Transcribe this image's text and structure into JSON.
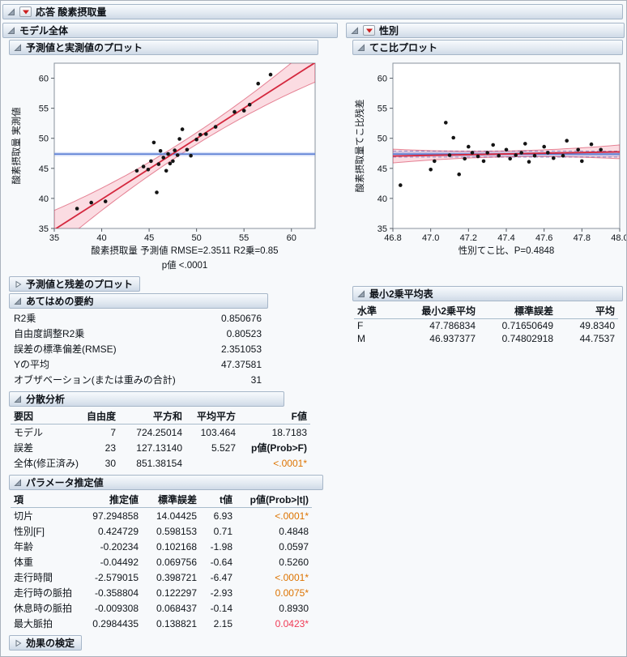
{
  "report": {
    "title": "応答 酸素摂取量"
  },
  "left": {
    "title": "モデル全体",
    "residual_plot": {
      "title": "予測値と残差のプロット"
    },
    "summary_of_fit": {
      "title": "あてはめの要約",
      "rows": [
        {
          "cells": [
            "R2乗",
            "0.850676"
          ],
          "classes": [
            "",
            "num"
          ]
        },
        {
          "cells": [
            "自由度調整R2乗",
            "0.80523"
          ],
          "classes": [
            "",
            "num"
          ]
        },
        {
          "cells": [
            "誤差の標準偏差(RMSE)",
            "2.351053"
          ],
          "classes": [
            "",
            "num"
          ]
        },
        {
          "cells": [
            "Yの平均",
            "47.37581"
          ],
          "classes": [
            "",
            "num"
          ]
        },
        {
          "cells": [
            "オブザベーション(または重みの合計)",
            "31"
          ],
          "classes": [
            "",
            "num"
          ]
        }
      ]
    },
    "anova": {
      "title": "分散分析",
      "headers": [
        "要因",
        "自由度",
        "平方和",
        "平均平方",
        "F値"
      ],
      "rows": [
        {
          "cells": [
            "モデル",
            "7",
            "724.25014",
            "103.464",
            "18.7183"
          ],
          "classes": [
            "",
            "num",
            "num",
            "num",
            "num"
          ]
        },
        {
          "cells": [
            "誤差",
            "23",
            "127.13140",
            "5.527",
            "p値(Prob>F)"
          ],
          "classes": [
            "",
            "num",
            "num",
            "num",
            "num bold"
          ]
        },
        {
          "cells": [
            "全体(修正済み)",
            "30",
            "851.38154",
            "",
            "<.0001*"
          ],
          "classes": [
            "",
            "num",
            "num",
            "num",
            "num orange"
          ]
        }
      ]
    },
    "parameters": {
      "title": "パラメータ推定値",
      "headers": [
        "項",
        "推定値",
        "標準誤差",
        "t値",
        "p値(Prob>|t|)"
      ],
      "rows": [
        {
          "cells": [
            "切片",
            "97.294858",
            "14.04425",
            "6.93",
            "<.0001*"
          ],
          "classes": [
            "",
            "num",
            "num",
            "num",
            "num orange"
          ]
        },
        {
          "cells": [
            "性別[F]",
            "0.424729",
            "0.598153",
            "0.71",
            "0.4848"
          ],
          "classes": [
            "",
            "num",
            "num",
            "num",
            "num"
          ]
        },
        {
          "cells": [
            "年齢",
            "-0.20234",
            "0.102168",
            "-1.98",
            "0.0597"
          ],
          "classes": [
            "",
            "num",
            "num",
            "num",
            "num"
          ]
        },
        {
          "cells": [
            "体重",
            "-0.04492",
            "0.069756",
            "-0.64",
            "0.5260"
          ],
          "classes": [
            "",
            "num",
            "num",
            "num",
            "num"
          ]
        },
        {
          "cells": [
            "走行時間",
            "-2.579015",
            "0.398721",
            "-6.47",
            "<.0001*"
          ],
          "classes": [
            "",
            "num",
            "num",
            "num",
            "num orange"
          ]
        },
        {
          "cells": [
            "走行時の脈拍",
            "-0.358804",
            "0.122297",
            "-2.93",
            "0.0075*"
          ],
          "classes": [
            "",
            "num",
            "num",
            "num",
            "num orange"
          ]
        },
        {
          "cells": [
            "休息時の脈拍",
            "-0.009308",
            "0.068437",
            "-0.14",
            "0.8930"
          ],
          "classes": [
            "",
            "num",
            "num",
            "num",
            "num"
          ]
        },
        {
          "cells": [
            "最大脈拍",
            "0.2984435",
            "0.138821",
            "2.15",
            "0.0423*"
          ],
          "classes": [
            "",
            "num",
            "num",
            "num",
            "num red"
          ]
        }
      ]
    },
    "effect_tests": {
      "title": "効果の検定"
    }
  },
  "right": {
    "title": "性別",
    "lsmeans": {
      "title": "最小2乗平均表",
      "headers": [
        "水準",
        "最小2乗平均",
        "標準誤差",
        "平均"
      ],
      "rows": [
        {
          "cells": [
            "F",
            "47.786834",
            "0.71650649",
            "49.8340"
          ],
          "classes": [
            "",
            "num",
            "num",
            "num"
          ]
        },
        {
          "cells": [
            "M",
            "46.937377",
            "0.74802918",
            "44.7537"
          ],
          "classes": [
            "",
            "num",
            "num",
            "num"
          ]
        }
      ]
    }
  },
  "chart_data": [
    {
      "type": "scatter",
      "title": "予測値と実測値のプロット",
      "xlabel": "酸素摂取量 予測値 RMSE=2.3511 R2乗=0.85",
      "xlabel2": "p値 <.0001",
      "ylabel": "酸素摂取量 実測値",
      "xlim": [
        35,
        62.5
      ],
      "ylim": [
        35,
        62.5
      ],
      "xticks": [
        35,
        40,
        45,
        50,
        55,
        60
      ],
      "xtick_labels": [
        "35",
        "40",
        "45",
        "50",
        "55",
        "60"
      ],
      "yticks": [
        35,
        40,
        45,
        50,
        55,
        60
      ],
      "points": [
        [
          37.4,
          38.3
        ],
        [
          38.9,
          39.3
        ],
        [
          40.4,
          39.5
        ],
        [
          43.7,
          44.6
        ],
        [
          44.4,
          45.3
        ],
        [
          44.9,
          44.8
        ],
        [
          45.2,
          46.2
        ],
        [
          45.5,
          49.3
        ],
        [
          45.8,
          41.0
        ],
        [
          46.0,
          45.7
        ],
        [
          46.2,
          47.9
        ],
        [
          46.5,
          46.8
        ],
        [
          46.8,
          44.6
        ],
        [
          47.0,
          47.4
        ],
        [
          47.2,
          45.8
        ],
        [
          47.5,
          46.2
        ],
        [
          47.7,
          48.0
        ],
        [
          48.0,
          47.2
        ],
        [
          48.2,
          49.9
        ],
        [
          48.5,
          51.5
        ],
        [
          49.0,
          48.1
        ],
        [
          49.4,
          47.1
        ],
        [
          50.0,
          49.8
        ],
        [
          50.4,
          50.6
        ],
        [
          51.0,
          50.7
        ],
        [
          52.0,
          51.9
        ],
        [
          54.0,
          54.4
        ],
        [
          55.0,
          54.6
        ],
        [
          55.6,
          55.6
        ],
        [
          56.5,
          59.1
        ],
        [
          57.8,
          60.6
        ]
      ],
      "fit_line": {
        "x0": 35.0,
        "y0": 34.8,
        "x1": 62.5,
        "y1": 62.6
      },
      "conf_band": {
        "center_x": 48.7,
        "min_halfwidth": 0.95,
        "curvature": 0.012
      },
      "mean_line_y": 47.37581
    },
    {
      "type": "scatter",
      "title": "てこ比プロット",
      "xlabel": "性別てこ比、P=0.4848",
      "ylabel": "酸素摂取量てこ比残差",
      "xlim": [
        46.8,
        48.0
      ],
      "ylim": [
        35,
        62.5
      ],
      "xticks": [
        46.8,
        47.0,
        47.2,
        47.4,
        47.6,
        47.8,
        48.0
      ],
      "xtick_labels": [
        "46.8",
        "47.0",
        "47.2",
        "47.4",
        "47.6",
        "47.8",
        "48.0"
      ],
      "yticks": [
        35,
        40,
        45,
        50,
        55,
        60
      ],
      "points": [
        [
          46.84,
          42.2
        ],
        [
          47.0,
          44.8
        ],
        [
          47.02,
          46.2
        ],
        [
          47.08,
          52.6
        ],
        [
          47.1,
          47.2
        ],
        [
          47.12,
          50.1
        ],
        [
          47.15,
          44.0
        ],
        [
          47.18,
          46.6
        ],
        [
          47.2,
          48.6
        ],
        [
          47.22,
          47.6
        ],
        [
          47.25,
          47.0
        ],
        [
          47.28,
          46.2
        ],
        [
          47.3,
          47.6
        ],
        [
          47.33,
          48.9
        ],
        [
          47.36,
          47.1
        ],
        [
          47.4,
          48.1
        ],
        [
          47.42,
          46.6
        ],
        [
          47.45,
          47.2
        ],
        [
          47.48,
          47.6
        ],
        [
          47.5,
          49.1
        ],
        [
          47.52,
          46.1
        ],
        [
          47.55,
          47.1
        ],
        [
          47.6,
          48.6
        ],
        [
          47.62,
          47.6
        ],
        [
          47.65,
          46.7
        ],
        [
          47.7,
          47.1
        ],
        [
          47.72,
          49.6
        ],
        [
          47.78,
          48.1
        ],
        [
          47.8,
          46.2
        ],
        [
          47.85,
          49.0
        ],
        [
          47.9,
          48.1
        ]
      ],
      "fit_line": {
        "x0": 46.8,
        "y0": 47.05,
        "x1": 48.0,
        "y1": 47.75
      },
      "conf_band": {
        "center_x": 47.4,
        "min_halfwidth": 0.5,
        "curvature": 1.8
      },
      "mean_line_y": 47.37581,
      "mean_band_halfwidth": 0.5
    }
  ]
}
